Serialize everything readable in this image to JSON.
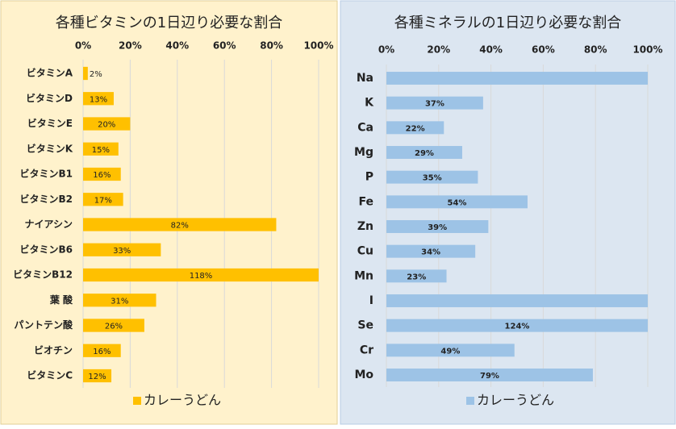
{
  "chart_data": [
    {
      "type": "hbar",
      "title": "各種ビタミンの1日辺り必要な割合",
      "categories": [
        "ビタミンA",
        "ビタミンD",
        "ビタミンE",
        "ビタミンK",
        "ビタミンB1",
        "ビタミンB2",
        "ナイアシン",
        "ビタミンB6",
        "ビタミンB12",
        "葉 酸",
        "パントテン酸",
        "ビオチン",
        "ビタミンC"
      ],
      "series": [
        {
          "name": "カレーうどん",
          "color": "#ffc000",
          "values": [
            2,
            13,
            20,
            15,
            16,
            17,
            82,
            33,
            118,
            31,
            26,
            16,
            12
          ],
          "value_labels": [
            "2%",
            "13%",
            "20%",
            "15%",
            "16%",
            "17%",
            "82%",
            "33%",
            "118%",
            "31%",
            "26%",
            "16%",
            "12%"
          ]
        }
      ],
      "xlim": [
        0,
        100
      ],
      "xticks": [
        {
          "value": 0,
          "label": "0%"
        },
        {
          "value": 20,
          "label": "20%"
        },
        {
          "value": 40,
          "label": "40%"
        },
        {
          "value": 60,
          "label": "60%"
        },
        {
          "value": 80,
          "label": "80%"
        },
        {
          "value": 100,
          "label": "100%"
        }
      ],
      "grid": true,
      "background": "#fff2cc",
      "border": "#e0cf96",
      "legend": "bottom-left"
    },
    {
      "type": "hbar",
      "title": "各種ミネラルの1日辺り必要な割合",
      "categories": [
        "Na",
        "K",
        "Ca",
        "Mg",
        "P",
        "Fe",
        "Zn",
        "Cu",
        "Mn",
        "I",
        "Se",
        "Cr",
        "Mo"
      ],
      "series": [
        {
          "name": "カレーうどん",
          "color": "#9dc3e6",
          "values": [
            100,
            37,
            22,
            29,
            35,
            54,
            39,
            34,
            23,
            100,
            124,
            49,
            79
          ],
          "value_labels": [
            null,
            "37%",
            "22%",
            "29%",
            "35%",
            "54%",
            "39%",
            "34%",
            "23%",
            null,
            "124%",
            "49%",
            "79%"
          ]
        }
      ],
      "xlim": [
        0,
        100
      ],
      "xticks": [
        {
          "value": 0,
          "label": "0%"
        },
        {
          "value": 20,
          "label": "20%"
        },
        {
          "value": 40,
          "label": "40%"
        },
        {
          "value": 60,
          "label": "60%"
        },
        {
          "value": 80,
          "label": "80%"
        },
        {
          "value": 100,
          "label": "100%"
        }
      ],
      "grid": true,
      "background": "#dce6f1",
      "border": "#b8cce4",
      "legend": "bottom-left"
    }
  ]
}
